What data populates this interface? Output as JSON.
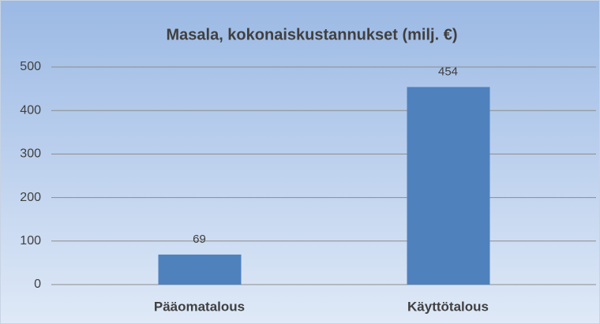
{
  "chart_data": {
    "type": "bar",
    "title": "Masala, kokonaiskustannukset  (milj. €)",
    "categories": [
      "Pääomatalous",
      "Käyttötalous"
    ],
    "values": [
      69,
      454
    ],
    "color": "#4f81bd",
    "ylim": [
      0,
      500
    ],
    "yticks": [
      0,
      100,
      200,
      300,
      400,
      500
    ],
    "grid": true,
    "data_labels": true
  }
}
